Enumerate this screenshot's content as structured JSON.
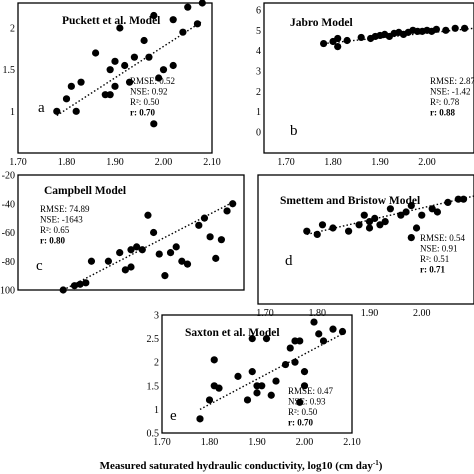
{
  "figure": {
    "x_caption_main": "Measured saturated hydraulic conductivity, log10 (cm day",
    "x_caption_sup": "-1",
    "x_caption_close": ")"
  },
  "chart_data": [
    {
      "type": "scatter",
      "title": "Puckett et al. Model",
      "panel_letter": "a",
      "stats": {
        "rmse": "RMSE: 0.52",
        "nse": "NSE: 0.92",
        "r2": "R²: 0.50",
        "r": "r: 0.70"
      },
      "xlim": [
        1.7,
        2.1
      ],
      "ylim": [
        0.5,
        2.3
      ],
      "xticks": [
        "1.70",
        "1.80",
        "1.90",
        "2.00",
        "2.10"
      ],
      "yticks": [
        "1",
        "1.5",
        "2"
      ],
      "yticks_values": [
        1,
        1.5,
        2
      ],
      "show_xticks": true,
      "trendline": [
        [
          1.78,
          0.95
        ],
        [
          2.08,
          2.08
        ]
      ],
      "points": [
        [
          1.78,
          1.0
        ],
        [
          1.8,
          1.15
        ],
        [
          1.81,
          1.3
        ],
        [
          1.82,
          1.0
        ],
        [
          1.83,
          1.35
        ],
        [
          1.86,
          1.7
        ],
        [
          1.88,
          1.2
        ],
        [
          1.89,
          1.5
        ],
        [
          1.89,
          1.2
        ],
        [
          1.9,
          1.6
        ],
        [
          1.9,
          1.3
        ],
        [
          1.91,
          2.0
        ],
        [
          1.92,
          1.55
        ],
        [
          1.93,
          1.35
        ],
        [
          1.94,
          1.65
        ],
        [
          1.96,
          1.85
        ],
        [
          1.97,
          1.65
        ],
        [
          1.98,
          0.85
        ],
        [
          1.98,
          2.15
        ],
        [
          1.99,
          1.4
        ],
        [
          2.0,
          1.5
        ],
        [
          2.02,
          1.55
        ],
        [
          2.02,
          2.1
        ],
        [
          2.04,
          1.95
        ],
        [
          2.05,
          2.25
        ],
        [
          2.07,
          2.05
        ],
        [
          2.08,
          2.3
        ]
      ]
    },
    {
      "type": "scatter",
      "title": "Jabro Model",
      "panel_letter": "b",
      "stats": {
        "rmse": "RMSE: 2.87",
        "nse": "NSE: -1.42",
        "r2": "R²: 0.78",
        "r": "r: 0.88"
      },
      "xlim": [
        1.7,
        2.1
      ],
      "ylim": [
        0,
        6
      ],
      "xticks": [
        "1.70",
        "1.80",
        "1.90",
        "2.00"
      ],
      "yticks": [
        "0",
        "1",
        "2",
        "3",
        "4",
        "5",
        "6"
      ],
      "yticks_values": [
        0,
        1,
        2,
        3,
        4,
        5,
        6
      ],
      "show_xticks": true,
      "trendline": [
        [
          1.78,
          4.35
        ],
        [
          2.1,
          5.1
        ]
      ],
      "points": [
        [
          1.78,
          4.35
        ],
        [
          1.8,
          4.45
        ],
        [
          1.81,
          4.2
        ],
        [
          1.81,
          4.6
        ],
        [
          1.83,
          4.5
        ],
        [
          1.86,
          4.65
        ],
        [
          1.88,
          4.6
        ],
        [
          1.89,
          4.7
        ],
        [
          1.9,
          4.75
        ],
        [
          1.91,
          4.8
        ],
        [
          1.92,
          4.7
        ],
        [
          1.93,
          4.85
        ],
        [
          1.94,
          4.9
        ],
        [
          1.95,
          4.8
        ],
        [
          1.96,
          4.9
        ],
        [
          1.97,
          5.0
        ],
        [
          1.98,
          4.95
        ],
        [
          1.99,
          4.95
        ],
        [
          2.0,
          5.0
        ],
        [
          2.01,
          4.95
        ],
        [
          2.02,
          5.05
        ],
        [
          2.04,
          5.0
        ],
        [
          2.06,
          5.1
        ],
        [
          2.08,
          5.1
        ]
      ]
    },
    {
      "type": "scatter",
      "title": "Campbell Model",
      "panel_letter": "c",
      "stats": {
        "rmse": "RMSE: 74.89",
        "nse": "NSE: -1643",
        "r2": "R²: 0.65",
        "r": "r: 0.80"
      },
      "xlim": [
        1.7,
        2.1
      ],
      "ylim": [
        -100,
        -20
      ],
      "xticks": [],
      "yticks": [
        "-20",
        "-40",
        "-60",
        "-80",
        "-100"
      ],
      "yticks_values": [
        -20,
        -40,
        -60,
        -80,
        -100
      ],
      "show_xticks": false,
      "trendline": [
        [
          1.78,
          -100
        ],
        [
          2.08,
          -39
        ]
      ],
      "points": [
        [
          1.78,
          -100
        ],
        [
          1.8,
          -97
        ],
        [
          1.81,
          -96
        ],
        [
          1.82,
          -95
        ],
        [
          1.83,
          -80
        ],
        [
          1.86,
          -80
        ],
        [
          1.88,
          -74
        ],
        [
          1.89,
          -86
        ],
        [
          1.9,
          -84
        ],
        [
          1.9,
          -72
        ],
        [
          1.91,
          -70
        ],
        [
          1.92,
          -72
        ],
        [
          1.93,
          -48
        ],
        [
          1.94,
          -60
        ],
        [
          1.95,
          -75
        ],
        [
          1.96,
          -90
        ],
        [
          1.97,
          -74
        ],
        [
          1.98,
          -70
        ],
        [
          1.99,
          -80
        ],
        [
          2.0,
          -82
        ],
        [
          2.02,
          -55
        ],
        [
          2.03,
          -50
        ],
        [
          2.04,
          -63
        ],
        [
          2.05,
          -78
        ],
        [
          2.06,
          -65
        ],
        [
          2.07,
          -45
        ],
        [
          2.08,
          -40
        ]
      ]
    },
    {
      "type": "scatter",
      "title": "Smettem and Bristow Model",
      "panel_letter": "d",
      "stats": {
        "rmse": "RMSE: 0.54",
        "nse": "NSE: 0.91",
        "r2": "R²: 0.51",
        "r": "r: 0.71"
      },
      "xlim": [
        1.7,
        2.1
      ],
      "ylim": [
        0.5,
        2.0
      ],
      "xticks": [
        "1.70",
        "1.80",
        "1.90",
        "2.00"
      ],
      "yticks": [],
      "yticks_values": [],
      "show_xticks": true,
      "trendline": [
        [
          1.78,
          1.15
        ],
        [
          2.1,
          1.75
        ]
      ],
      "points": [
        [
          1.78,
          1.2
        ],
        [
          1.8,
          1.15
        ],
        [
          1.81,
          1.3
        ],
        [
          1.83,
          1.25
        ],
        [
          1.86,
          1.2
        ],
        [
          1.88,
          1.3
        ],
        [
          1.89,
          1.45
        ],
        [
          1.9,
          1.35
        ],
        [
          1.9,
          1.25
        ],
        [
          1.91,
          1.4
        ],
        [
          1.92,
          1.3
        ],
        [
          1.93,
          1.35
        ],
        [
          1.94,
          1.55
        ],
        [
          1.96,
          1.45
        ],
        [
          1.97,
          1.5
        ],
        [
          1.98,
          1.1
        ],
        [
          1.98,
          1.6
        ],
        [
          1.99,
          1.25
        ],
        [
          2.0,
          1.45
        ],
        [
          2.02,
          1.55
        ],
        [
          2.03,
          1.5
        ],
        [
          2.05,
          1.65
        ],
        [
          2.07,
          1.7
        ],
        [
          2.08,
          1.7
        ]
      ]
    },
    {
      "type": "scatter",
      "title": "Saxton et al. Model",
      "panel_letter": "e",
      "stats": {
        "rmse": "RMSE: 0.47",
        "nse": "NSE: 0.93",
        "r2": "R²: 0.50",
        "r": "r: 0.70"
      },
      "xlim": [
        1.7,
        2.1
      ],
      "ylim": [
        0.5,
        3.0
      ],
      "xticks": [
        "1.70",
        "1.80",
        "1.90",
        "2.00",
        "2.10"
      ],
      "yticks": [
        "0.5",
        "1",
        "1.5",
        "2",
        "2.5",
        "3"
      ],
      "yticks_values": [
        0.5,
        1,
        1.5,
        2,
        2.5,
        3
      ],
      "show_xticks": true,
      "trendline": [
        [
          1.78,
          1.0
        ],
        [
          2.08,
          2.6
        ]
      ],
      "points": [
        [
          1.78,
          0.8
        ],
        [
          1.8,
          1.2
        ],
        [
          1.81,
          1.5
        ],
        [
          1.81,
          2.05
        ],
        [
          1.82,
          1.45
        ],
        [
          1.86,
          1.7
        ],
        [
          1.88,
          1.2
        ],
        [
          1.89,
          1.8
        ],
        [
          1.89,
          2.5
        ],
        [
          1.9,
          1.5
        ],
        [
          1.9,
          1.35
        ],
        [
          1.91,
          1.5
        ],
        [
          1.92,
          2.5
        ],
        [
          1.93,
          1.3
        ],
        [
          1.94,
          1.6
        ],
        [
          1.96,
          1.95
        ],
        [
          1.97,
          2.3
        ],
        [
          1.98,
          2.45
        ],
        [
          1.98,
          2.0
        ],
        [
          1.99,
          2.45
        ],
        [
          1.99,
          1.15
        ],
        [
          2.0,
          1.5
        ],
        [
          2.0,
          1.8
        ],
        [
          2.02,
          2.85
        ],
        [
          2.03,
          2.6
        ],
        [
          2.04,
          2.45
        ],
        [
          2.06,
          2.7
        ],
        [
          2.08,
          2.65
        ]
      ]
    }
  ]
}
